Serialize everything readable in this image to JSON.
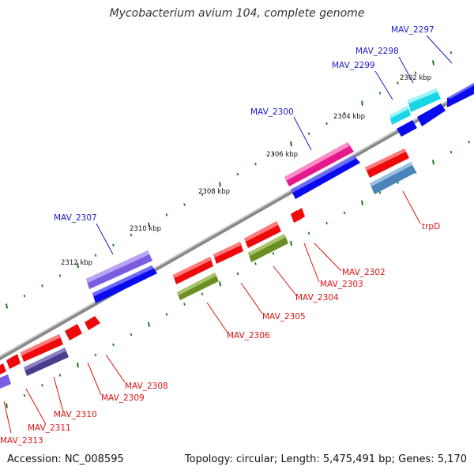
{
  "title": "Mycobacterium avium 104, complete genome",
  "footer": {
    "accession": "Accession: NC_008595",
    "summary": "Topology: circular; Length: 5,475,491 bp; Genes: 5,170"
  },
  "colors": {
    "backbone": "#8a8a8a",
    "tick": "#1f7a1f",
    "label_top": "#1a1acc",
    "label_bottom": "#dd1111",
    "forward_cds": "#0a0aee",
    "reverse_cds": "#ee0a0a"
  },
  "kbp_labels": [
    "2302 kbp",
    "2304 kbp",
    "2306 kbp",
    "2308 kbp",
    "2310 kbp",
    "2312 kbp"
  ],
  "gene_labels_top": [
    "MAV_2297",
    "MAV_2298",
    "MAV_2299",
    "MAV_2300",
    "MAV_2307"
  ],
  "gene_labels_bottom": [
    "trpD",
    "MAV_2302",
    "MAV_2303",
    "MAV_2304",
    "MAV_2305",
    "MAV_2306",
    "MAV_2308",
    "MAV_2309",
    "MAV_2310",
    "MAV_2311",
    "MAV_2313"
  ]
}
